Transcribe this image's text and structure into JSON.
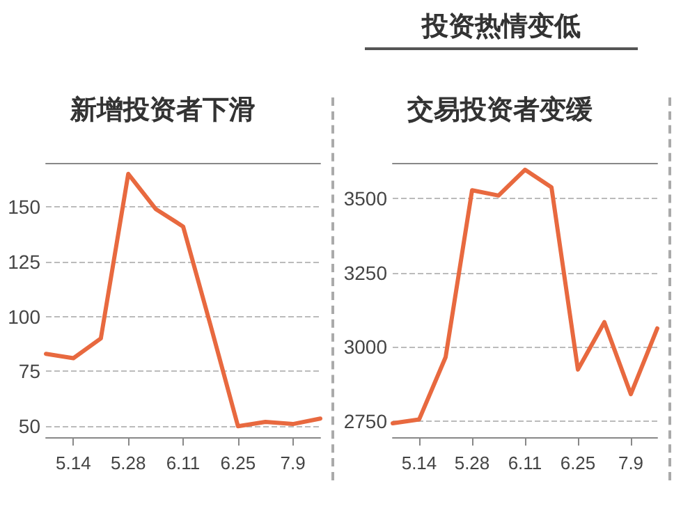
{
  "chart_data": [
    {
      "type": "line",
      "title": "新增投资者下滑",
      "categories": [
        null,
        "5.14",
        null,
        "5.28",
        null,
        "6.11",
        null,
        "6.25",
        null,
        "7.9",
        null
      ],
      "series": [
        {
          "color": "#e8693f",
          "values": [
            83,
            81,
            90,
            165,
            149,
            141,
            96,
            50,
            52,
            51,
            53.5
          ]
        }
      ],
      "ylim": [
        45,
        170
      ],
      "yticks": [
        50,
        75,
        100,
        125,
        150
      ],
      "grid": "y",
      "marker": "none",
      "line_style": "solid"
    },
    {
      "type": "line",
      "title": "交易投资者变缓",
      "annotations": [
        "投资热情变低"
      ],
      "categories": [
        null,
        "5.14",
        null,
        "5.28",
        null,
        "6.11",
        null,
        "6.25",
        null,
        "7.9",
        null
      ],
      "series": [
        {
          "color": "#e8693f",
          "values": [
            2742,
            2755,
            2965,
            3528,
            3510,
            3597,
            3538,
            2923,
            3083,
            2840,
            3062
          ]
        }
      ],
      "ylim": [
        2695,
        3620
      ],
      "yticks": [
        2750,
        3000,
        3250,
        3500
      ],
      "grid": "y",
      "marker": "none",
      "line_style": "solid"
    }
  ]
}
